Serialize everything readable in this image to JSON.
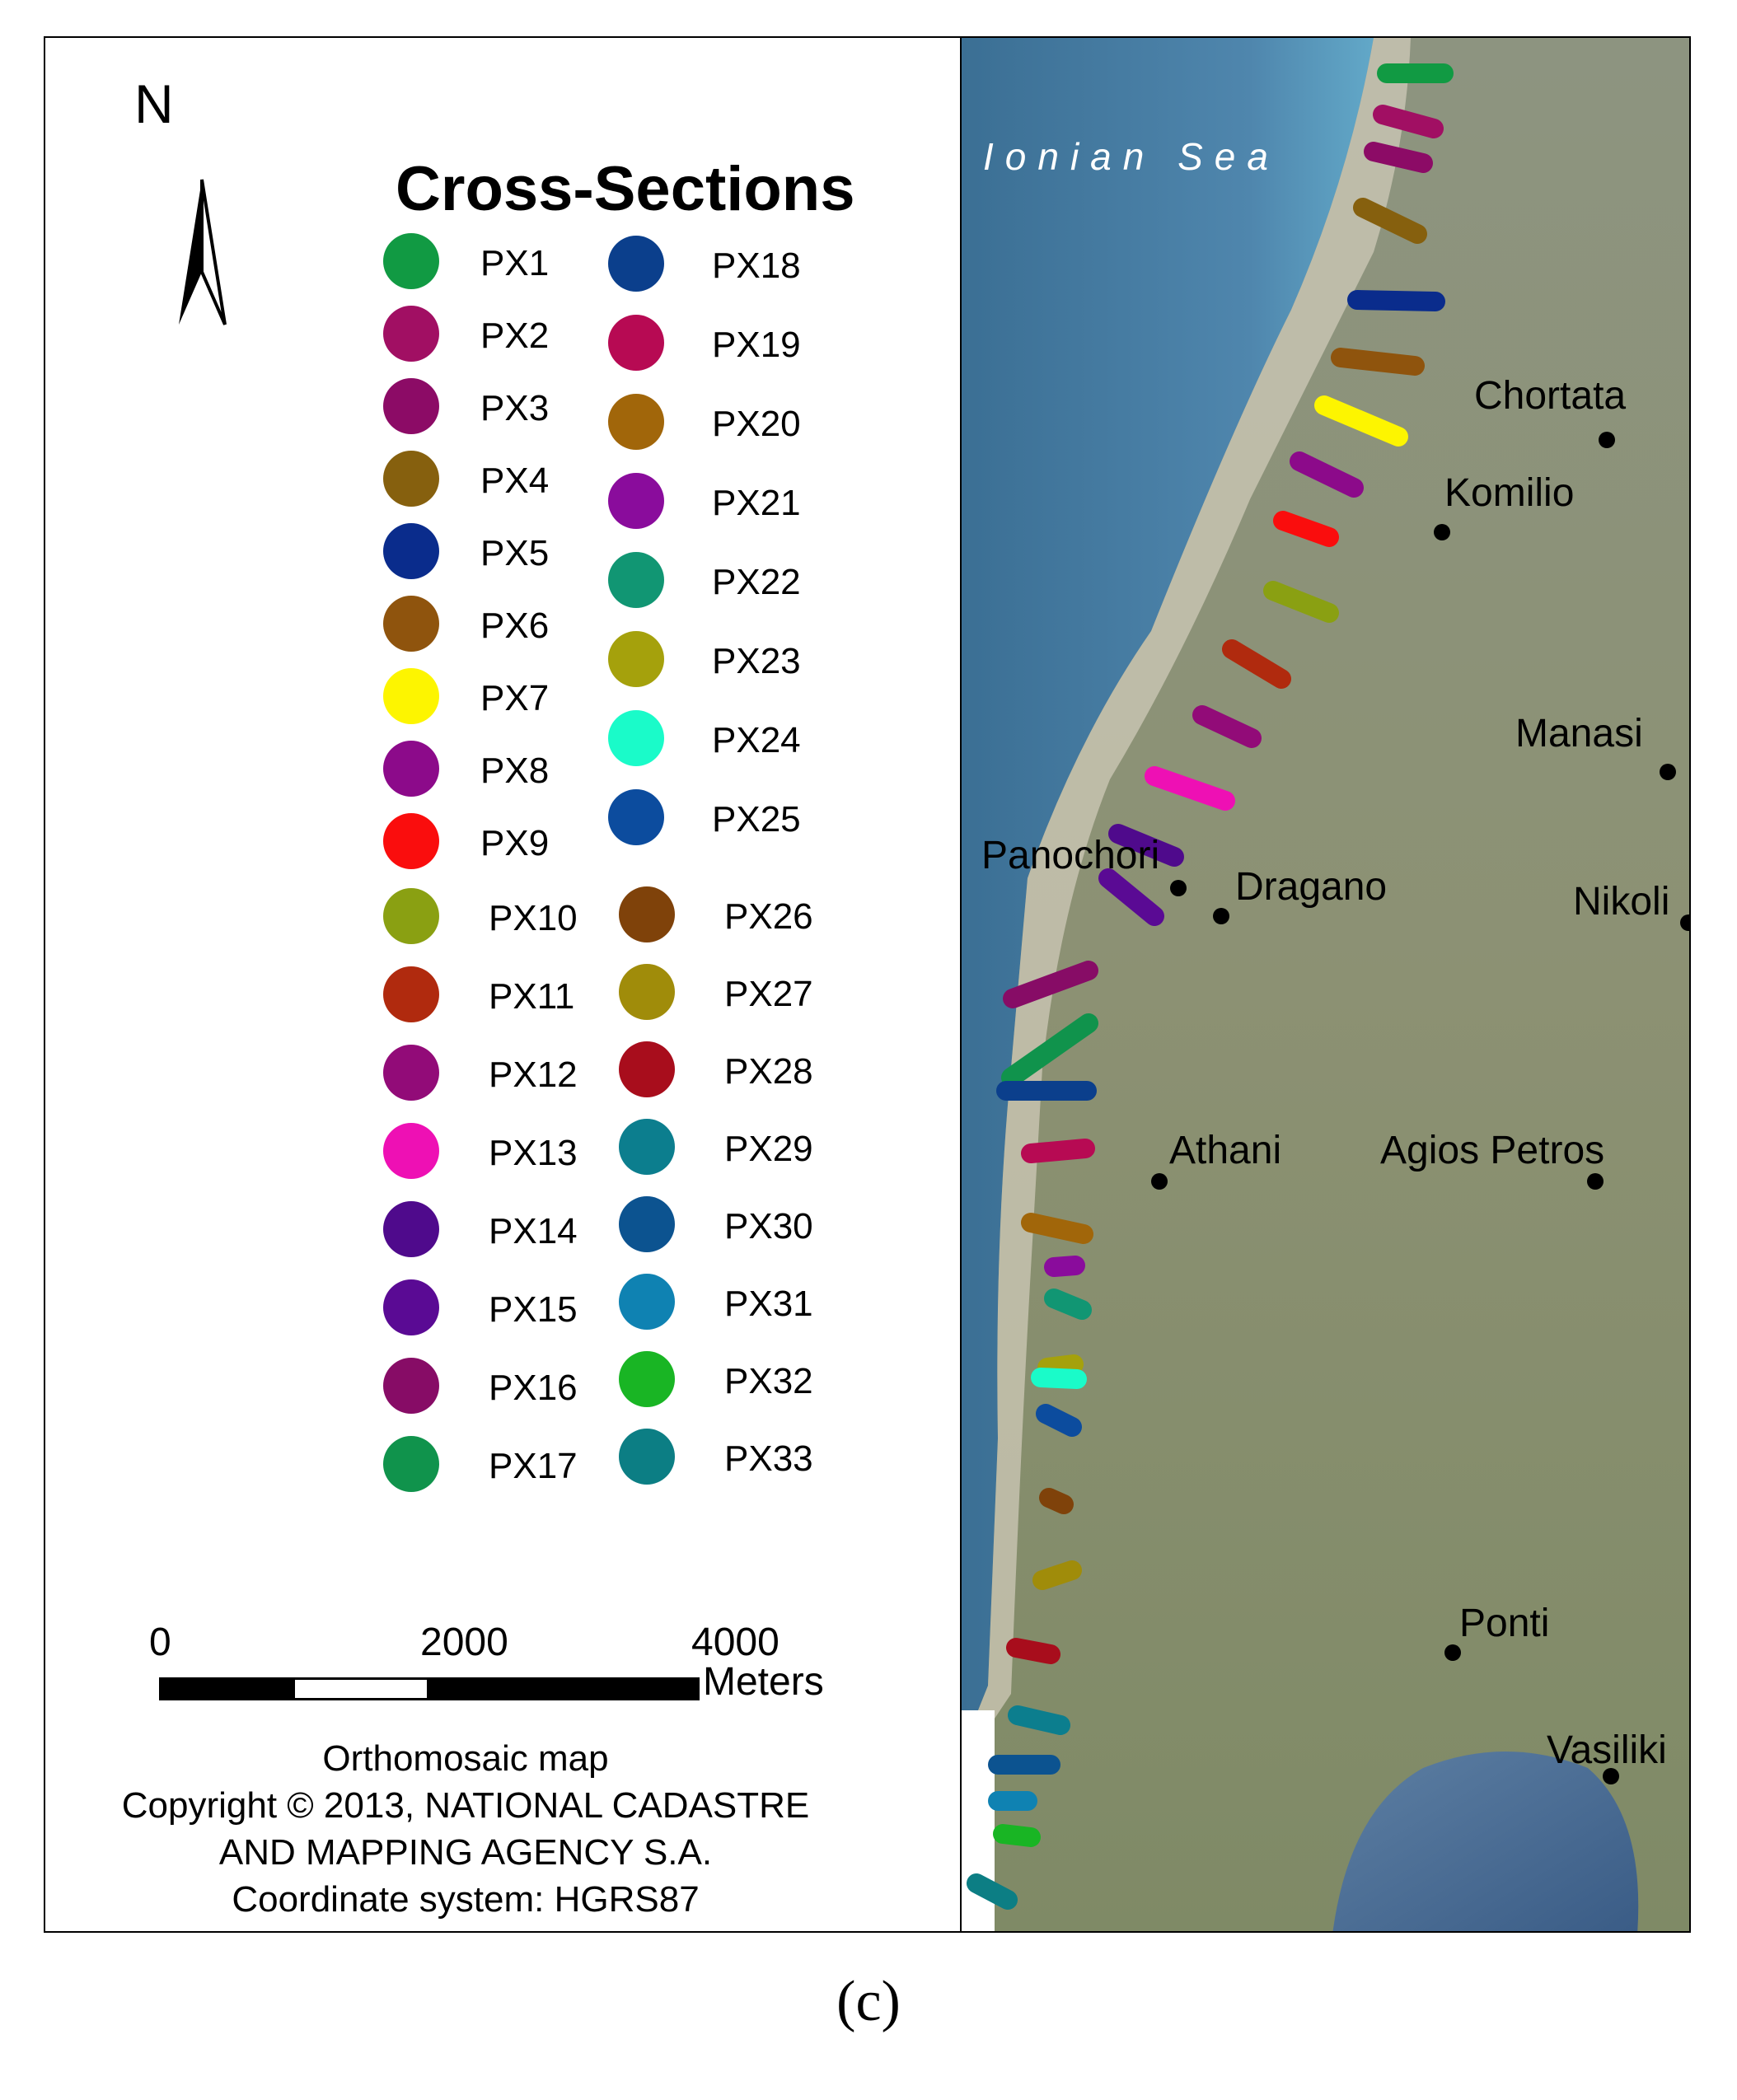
{
  "legend": {
    "north_label": "N",
    "title": "Cross-Sections",
    "items": [
      {
        "label": "PX1",
        "color": "#119a43"
      },
      {
        "label": "PX2",
        "color": "#a10f63"
      },
      {
        "label": "PX3",
        "color": "#8c0b66"
      },
      {
        "label": "PX4",
        "color": "#86600e"
      },
      {
        "label": "PX5",
        "color": "#0a2c8c"
      },
      {
        "label": "PX6",
        "color": "#8f540d"
      },
      {
        "label": "PX7",
        "color": "#fdf500"
      },
      {
        "label": "PX8",
        "color": "#8c0a8a"
      },
      {
        "label": "PX9",
        "color": "#fa0d0d"
      },
      {
        "label": "PX10",
        "color": "#8aa012"
      },
      {
        "label": "PX11",
        "color": "#b02a0e"
      },
      {
        "label": "PX12",
        "color": "#920b78"
      },
      {
        "label": "PX13",
        "color": "#ee10b4"
      },
      {
        "label": "PX14",
        "color": "#4f0a8c"
      },
      {
        "label": "PX15",
        "color": "#5a0a94"
      },
      {
        "label": "PX16",
        "color": "#870c66"
      },
      {
        "label": "PX17",
        "color": "#10934c"
      },
      {
        "label": "PX18",
        "color": "#0b3f8c"
      },
      {
        "label": "PX19",
        "color": "#b70a53"
      },
      {
        "label": "PX20",
        "color": "#a1660a"
      },
      {
        "label": "PX21",
        "color": "#8a0c9c"
      },
      {
        "label": "PX22",
        "color": "#119673"
      },
      {
        "label": "PX23",
        "color": "#a5a10c"
      },
      {
        "label": "PX24",
        "color": "#1afbc9"
      },
      {
        "label": "PX25",
        "color": "#0c4c9e"
      },
      {
        "label": "PX26",
        "color": "#7f420a"
      },
      {
        "label": "PX27",
        "color": "#a08c0a"
      },
      {
        "label": "PX28",
        "color": "#a80d1c"
      },
      {
        "label": "PX29",
        "color": "#0c7e8e"
      },
      {
        "label": "PX30",
        "color": "#0c5390"
      },
      {
        "label": "PX31",
        "color": "#0f82b2"
      },
      {
        "label": "PX32",
        "color": "#19b524"
      },
      {
        "label": "PX33",
        "color": "#0c7e84"
      }
    ]
  },
  "scale": {
    "ticks": [
      "0",
      "2000",
      "4000"
    ],
    "unit": "Meters"
  },
  "credits": [
    "Orthomosaic map",
    "Copyright © 2013, NATIONAL CADASTRE",
    "AND MAPPING AGENCY S.A.",
    "Coordinate system: HGRS87"
  ],
  "map": {
    "sea_label": "Ionian Sea",
    "places": [
      "Chortata",
      "Komilio",
      "Manasi",
      "Panochori",
      "Dragano",
      "Nikoli",
      "Athani",
      "Agios Petros",
      "Ponti",
      "Vasiliki"
    ]
  },
  "caption": "(c)"
}
